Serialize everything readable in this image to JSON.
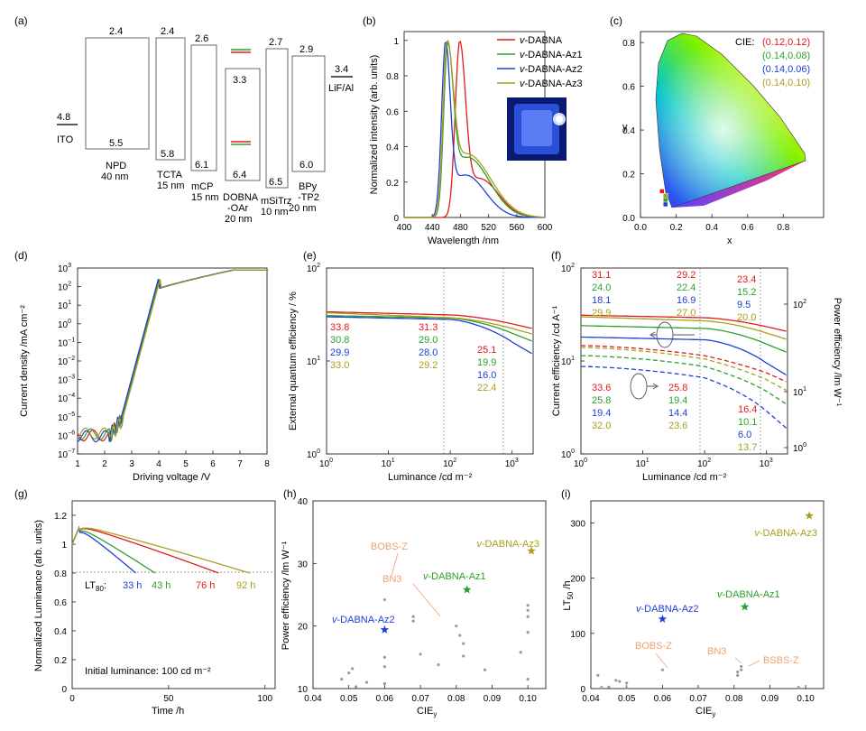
{
  "colors": {
    "red": "#e31a1c",
    "green": "#2ca02c",
    "blue": "#1f3fd6",
    "olive": "#a8a01e",
    "orange": "#f0a070",
    "gray": "#9a9a9a"
  },
  "panel_labels": [
    "(a)",
    "(b)",
    "(c)",
    "(d)",
    "(e)",
    "(f)",
    "(g)",
    "(h)",
    "(i)"
  ],
  "chart_data": [
    {
      "panel": "(a)",
      "type": "energy-level-diagram",
      "layers": [
        {
          "name": "ITO",
          "work_function": "4.8"
        },
        {
          "name": "NPD",
          "thickness": "40 nm",
          "top": "2.4",
          "bottom": "5.5"
        },
        {
          "name": "TCTA",
          "thickness": "15 nm",
          "top": "2.4",
          "bottom": "5.8"
        },
        {
          "name": "mCP",
          "thickness": "15 nm",
          "top": "2.6",
          "bottom": "6.1"
        },
        {
          "name": "DOBNA -OAr",
          "thickness": "20 nm",
          "top": "3.3",
          "bottom": "6.4"
        },
        {
          "name": "mSiTrz",
          "thickness": "10 nm",
          "top": "2.7",
          "bottom": "6.5"
        },
        {
          "name": "BPy -TP2",
          "thickness": "20 nm",
          "top": "2.9",
          "bottom": "6.0"
        },
        {
          "name": "LiF/Al",
          "work_function": "3.4"
        }
      ]
    },
    {
      "panel": "(b)",
      "type": "line",
      "xlabel": "Wavelength /nm",
      "ylabel": "Normalized intensity (arb. units)",
      "xlim": [
        400,
        600
      ],
      "ylim": [
        0,
        1.05
      ],
      "xticks": [
        "400",
        "440",
        "480",
        "520",
        "560",
        "600"
      ],
      "yticks": [
        "0",
        "0.2",
        "0.4",
        "0.6",
        "0.8",
        "1"
      ],
      "legend": [
        "v-DABNA",
        "v-DABNA-Az1",
        "v-DABNA-Az2",
        "v-DABNA-Az3"
      ],
      "legend_prefix": "v",
      "legend_rest": [
        "-DABNA",
        "-DABNA-Az1",
        "-DABNA-Az2",
        "-DABNA-Az3"
      ],
      "peaks_nm": [
        479,
        462,
        459,
        461
      ]
    },
    {
      "panel": "(c)",
      "type": "scatter",
      "xlabel": "x",
      "ylabel": "y",
      "xticks": [
        "0.0",
        "0.2",
        "0.4",
        "0.6",
        "0.8"
      ],
      "yticks": [
        "0.0",
        "0.2",
        "0.4",
        "0.6",
        "0.8"
      ],
      "cie_title": "CIE:",
      "points": [
        {
          "label": "(0.12,0.12)",
          "x": 0.12,
          "y": 0.12
        },
        {
          "label": "(0.14,0.08)",
          "x": 0.14,
          "y": 0.08
        },
        {
          "label": "(0.14,0.06)",
          "x": 0.14,
          "y": 0.06
        },
        {
          "label": "(0.14,0.10)",
          "x": 0.14,
          "y": 0.1
        }
      ]
    },
    {
      "panel": "(d)",
      "type": "line",
      "xlabel": "Driving voltage /V",
      "ylabel": "Current density /mA cm⁻²",
      "xticks": [
        "1",
        "2",
        "3",
        "4",
        "5",
        "6",
        "7",
        "8"
      ],
      "yexp": [
        "3",
        "2",
        "1",
        "0",
        "−1",
        "−2",
        "−3",
        "−4",
        "−5",
        "−6",
        "−7"
      ]
    },
    {
      "panel": "(e)",
      "type": "line",
      "xlabel": "Luminance /cd m⁻²",
      "ylabel": "External quantum efficiency / %",
      "labels_1": [
        "33.8",
        "30.8",
        "29.9",
        "33.0"
      ],
      "labels_100": [
        "31.3",
        "29.0",
        "28.0",
        "29.2"
      ],
      "labels_1000": [
        "25.1",
        "19.9",
        "16.0",
        "22.4"
      ]
    },
    {
      "panel": "(f)",
      "type": "line",
      "xlabel": "Luminance /cd m⁻²",
      "ylabel": "Current efficiency /cd A⁻¹",
      "ylabel_right": "Power efficiency /lm W⁻¹",
      "ce_1": [
        "31.1",
        "24.0",
        "18.1",
        "29.9"
      ],
      "ce_100": [
        "29.2",
        "22.4",
        "16.9",
        "27.0"
      ],
      "ce_1000": [
        "23.4",
        "15.2",
        "9.5",
        "20.0"
      ],
      "pe_1": [
        "33.6",
        "25.8",
        "19.4",
        "32.0"
      ],
      "pe_100": [
        "25.8",
        "19.4",
        "14.4",
        "23.6"
      ],
      "pe_1000": [
        "16.4",
        "10.1",
        "6.0",
        "13.7"
      ]
    },
    {
      "panel": "(g)",
      "type": "line",
      "xlabel": "Time /h",
      "ylabel": "Normalized Luminance (arb. units)",
      "xticks": [
        "0",
        "50",
        "100"
      ],
      "yticks": [
        "0",
        "0.2",
        "0.4",
        "0.6",
        "0.8",
        "1",
        "1.2"
      ],
      "lt80_label": "LT",
      "lt80_sub": "80",
      "lt80_colon": ":",
      "lt80": [
        "33 h",
        "43 h",
        "76 h",
        "92 h"
      ],
      "note": "Initial luminance: 100 cd m⁻²"
    },
    {
      "panel": "(h)",
      "type": "scatter",
      "xlabel": "CIE",
      "xlabel_sub": "y",
      "ylabel": "Power efficiency /lm W⁻¹",
      "xticks": [
        "0.04",
        "0.05",
        "0.06",
        "0.07",
        "0.08",
        "0.09",
        "0.10"
      ],
      "yticks": [
        "10",
        "20",
        "30",
        "40"
      ],
      "stars": [
        {
          "label": "v-DABNA-Az1",
          "x": 0.083,
          "y": 25.8
        },
        {
          "label": "v-DABNA-Az2",
          "x": 0.06,
          "y": 19.4
        },
        {
          "label": "v-DABNA-Az3",
          "x": 0.101,
          "y": 32.0
        }
      ],
      "refs": [
        "BOBS-Z",
        "BN3"
      ]
    },
    {
      "panel": "(i)",
      "type": "scatter",
      "xlabel": "CIE",
      "xlabel_sub": "y",
      "ylabel": "LT",
      "ylabel_sub": "50",
      "ylabel_unit": " /h",
      "xticks": [
        "0.04",
        "0.05",
        "0.06",
        "0.07",
        "0.08",
        "0.09",
        "0.10"
      ],
      "yticks": [
        "0",
        "100",
        "200",
        "300"
      ],
      "stars": [
        {
          "label": "v-DABNA-Az1",
          "x": 0.083,
          "y": 148
        },
        {
          "label": "v-DABNA-Az2",
          "x": 0.06,
          "y": 126
        },
        {
          "label": "v-DABNA-Az3",
          "x": 0.101,
          "y": 313
        }
      ],
      "refs": [
        "BOBS-Z",
        "BN3",
        "BSBS-Z"
      ]
    }
  ]
}
